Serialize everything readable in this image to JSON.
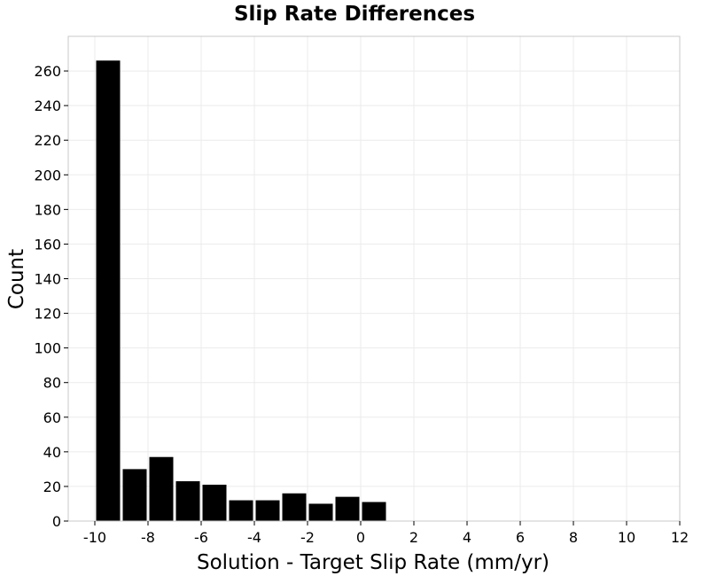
{
  "chart_data": {
    "type": "bar",
    "title": "Slip Rate Differences",
    "xlabel": "Solution - Target Slip Rate (mm/yr)",
    "ylabel": "Count",
    "bin_width": 1,
    "bins": [
      {
        "x0": -10,
        "x1": -9,
        "count": 266
      },
      {
        "x0": -9,
        "x1": -8,
        "count": 30
      },
      {
        "x0": -8,
        "x1": -7,
        "count": 37
      },
      {
        "x0": -7,
        "x1": -6,
        "count": 23
      },
      {
        "x0": -6,
        "x1": -5,
        "count": 21
      },
      {
        "x0": -5,
        "x1": -4,
        "count": 12
      },
      {
        "x0": -4,
        "x1": -3,
        "count": 12
      },
      {
        "x0": -3,
        "x1": -2,
        "count": 16
      },
      {
        "x0": -2,
        "x1": -1,
        "count": 10
      },
      {
        "x0": -1,
        "x1": 0,
        "count": 14
      },
      {
        "x0": 0,
        "x1": 1,
        "count": 11
      }
    ],
    "xlim": [
      -11,
      12
    ],
    "ylim": [
      0,
      280
    ],
    "xticks": [
      -10,
      -8,
      -6,
      -4,
      -2,
      0,
      2,
      4,
      6,
      8,
      10,
      12
    ],
    "yticks": [
      0,
      20,
      40,
      60,
      80,
      100,
      120,
      140,
      160,
      180,
      200,
      220,
      240,
      260
    ],
    "grid": true,
    "bar_color": "#000000",
    "grid_color": "#ebebeb",
    "frame_color": "#c8c8c8"
  }
}
